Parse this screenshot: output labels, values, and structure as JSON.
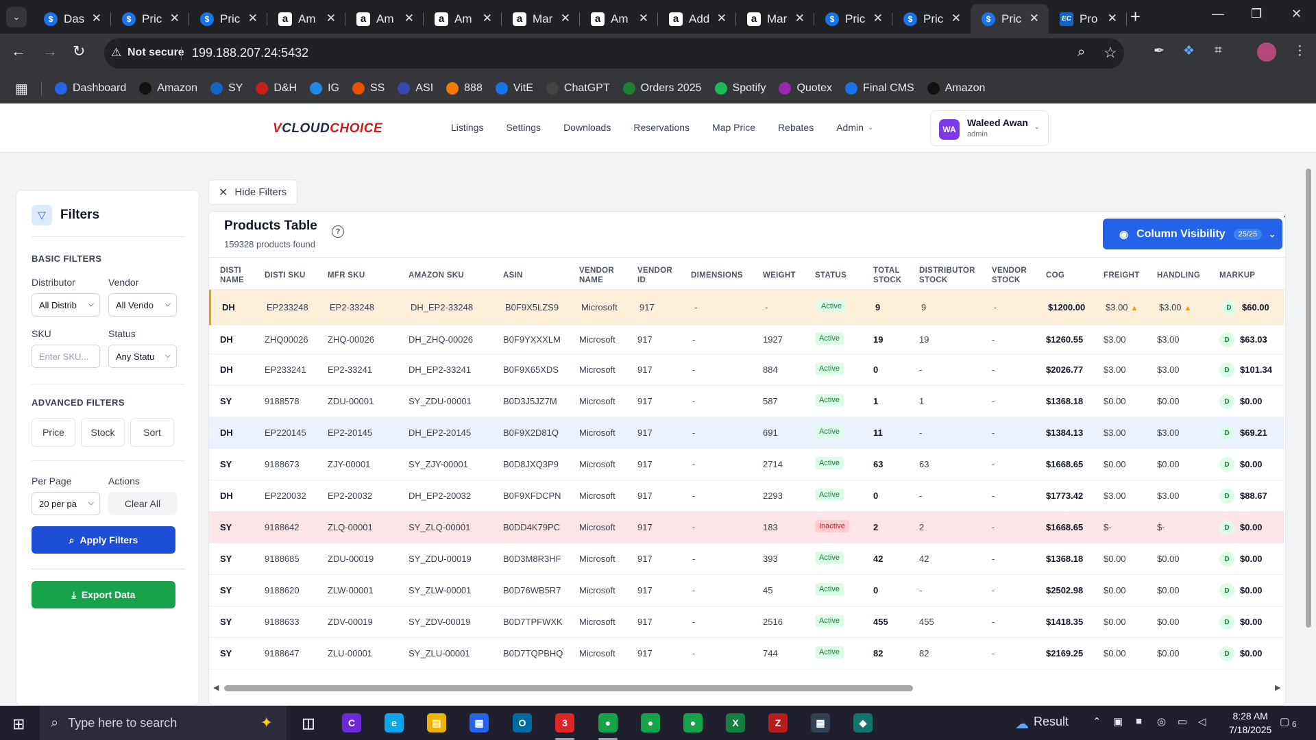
{
  "browser": {
    "tabs": [
      {
        "icon": "dollar-icon",
        "title": "Das",
        "kind": "dollar"
      },
      {
        "icon": "dollar-icon",
        "title": "Pric",
        "kind": "dollar"
      },
      {
        "icon": "dollar-icon",
        "title": "Pric",
        "kind": "dollar"
      },
      {
        "icon": "amazon-icon",
        "title": "Am",
        "kind": "amazon"
      },
      {
        "icon": "amazon-icon",
        "title": "Am",
        "kind": "amazon"
      },
      {
        "icon": "amazon-icon",
        "title": "Am",
        "kind": "amazon"
      },
      {
        "icon": "amazon-icon",
        "title": "Mar",
        "kind": "amazon"
      },
      {
        "icon": "amazon-icon",
        "title": "Am",
        "kind": "amazon"
      },
      {
        "icon": "amazon-icon",
        "title": "Add",
        "kind": "amazon"
      },
      {
        "icon": "amazon-icon",
        "title": "Mar",
        "kind": "amazon"
      },
      {
        "icon": "dollar-icon",
        "title": "Pric",
        "kind": "dollar"
      },
      {
        "icon": "dollar-icon",
        "title": "Pric",
        "kind": "dollar"
      },
      {
        "icon": "dollar-icon",
        "title": "Pric",
        "kind": "dollar",
        "active": true
      },
      {
        "icon": "ec-icon",
        "title": "Pro",
        "kind": "ec"
      }
    ],
    "security_label": "Not secure",
    "url": "199.188.207.24:5432",
    "bookmarks": [
      {
        "label": "Dashboard",
        "color": "#2563eb"
      },
      {
        "label": "Amazon",
        "color": "#111111"
      },
      {
        "label": "SY",
        "color": "#1565c0"
      },
      {
        "label": "D&H",
        "color": "#c81e1e"
      },
      {
        "label": "IG",
        "color": "#1e88e5"
      },
      {
        "label": "SS",
        "color": "#e65100"
      },
      {
        "label": "ASI",
        "color": "#3949ab"
      },
      {
        "label": "888",
        "color": "#f57c00"
      },
      {
        "label": "VitE",
        "color": "#1a73e8"
      },
      {
        "label": "ChatGPT",
        "color": "#444444"
      },
      {
        "label": "Orders 2025",
        "color": "#1e7e34"
      },
      {
        "label": "Spotify",
        "color": "#1db954"
      },
      {
        "label": "Quotex",
        "color": "#9c27b0"
      },
      {
        "label": "Final CMS",
        "color": "#1a73e8"
      },
      {
        "label": "Amazon",
        "color": "#111111"
      }
    ]
  },
  "app": {
    "logo_v": "V",
    "logo_cloud": "CLOUD",
    "logo_choice": "CHOICE",
    "nav": [
      "Listings",
      "Settings",
      "Downloads",
      "Reservations",
      "Map Price",
      "Rebates",
      "Admin"
    ],
    "user": {
      "initials": "WA",
      "name": "Waleed Awan",
      "role": "admin"
    }
  },
  "filters": {
    "title": "Filters",
    "basic_label": "BASIC FILTERS",
    "distributor_label": "Distributor",
    "distributor_value": "All Distrib",
    "vendor_label": "Vendor",
    "vendor_value": "All Vendo",
    "sku_label": "SKU",
    "sku_placeholder": "Enter SKU...",
    "status_label": "Status",
    "status_value": "Any Statu",
    "advanced_label": "ADVANCED FILTERS",
    "price_btn": "Price",
    "stock_btn": "Stock",
    "sort_btn": "Sort",
    "per_page_label": "Per Page",
    "per_page_value": "20 per pa",
    "actions_label": "Actions",
    "clear_all": "Clear All",
    "apply": "Apply Filters",
    "export": "Export Data"
  },
  "table": {
    "hide_filters": "Hide Filters",
    "title": "Products Table",
    "count": "159328 products found",
    "column_visibility": "Column Visibility",
    "column_visibility_count": "25/25",
    "headers": {
      "disti_name": [
        "DISTI",
        "NAME"
      ],
      "disti_sku": [
        "DISTI SKU"
      ],
      "mfr_sku": [
        "MFR SKU"
      ],
      "amazon_sku": [
        "AMAZON SKU"
      ],
      "asin": [
        "ASIN"
      ],
      "vendor_name": [
        "VENDOR",
        "NAME"
      ],
      "vendor_id": [
        "VENDOR",
        "ID"
      ],
      "dimensions": [
        "DIMENSIONS"
      ],
      "weight": [
        "WEIGHT"
      ],
      "status": [
        "STATUS"
      ],
      "total_stock": [
        "TOTAL",
        "STOCK"
      ],
      "distributor_stock": [
        "DISTRIBUTOR",
        "STOCK"
      ],
      "vendor_stock": [
        "VENDOR",
        "STOCK"
      ],
      "cog": [
        "COG"
      ],
      "freight": [
        "FREIGHT"
      ],
      "handling": [
        "HANDLING"
      ],
      "markup": [
        "MARKUP"
      ]
    },
    "rows": [
      {
        "disti": "DH",
        "disti_sku": "EP233248",
        "mfr_sku": "EP2-33248",
        "amazon_sku": "DH_EP2-33248",
        "asin": "B0F9X5LZS9",
        "vendor": "Microsoft",
        "vendor_id": "917",
        "dims": "-",
        "weight": "-",
        "status": "Active",
        "total": "9",
        "dist_stock": "9",
        "vendor_stock": "-",
        "cog": "$1200.00",
        "freight": "$3.00",
        "handling": "$3.00",
        "markup_badge": "D",
        "markup": "$60.00",
        "highlight": "orange",
        "warn": true
      },
      {
        "disti": "DH",
        "disti_sku": "ZHQ00026",
        "mfr_sku": "ZHQ-00026",
        "amazon_sku": "DH_ZHQ-00026",
        "asin": "B0F9YXXXLM",
        "vendor": "Microsoft",
        "vendor_id": "917",
        "dims": "-",
        "weight": "1927",
        "status": "Active",
        "total": "19",
        "dist_stock": "19",
        "vendor_stock": "-",
        "cog": "$1260.55",
        "freight": "$3.00",
        "handling": "$3.00",
        "markup_badge": "D",
        "markup": "$63.03"
      },
      {
        "disti": "DH",
        "disti_sku": "EP233241",
        "mfr_sku": "EP2-33241",
        "amazon_sku": "DH_EP2-33241",
        "asin": "B0F9X65XDS",
        "vendor": "Microsoft",
        "vendor_id": "917",
        "dims": "-",
        "weight": "884",
        "status": "Active",
        "total": "0",
        "dist_stock": "-",
        "vendor_stock": "-",
        "cog": "$2026.77",
        "freight": "$3.00",
        "handling": "$3.00",
        "markup_badge": "D",
        "markup": "$101.34"
      },
      {
        "disti": "SY",
        "disti_sku": "9188578",
        "mfr_sku": "ZDU-00001",
        "amazon_sku": "SY_ZDU-00001",
        "asin": "B0D3J5JZ7M",
        "vendor": "Microsoft",
        "vendor_id": "917",
        "dims": "-",
        "weight": "587",
        "status": "Active",
        "total": "1",
        "dist_stock": "1",
        "vendor_stock": "-",
        "cog": "$1368.18",
        "freight": "$0.00",
        "handling": "$0.00",
        "markup_badge": "D",
        "markup": "$0.00"
      },
      {
        "disti": "DH",
        "disti_sku": "EP220145",
        "mfr_sku": "EP2-20145",
        "amazon_sku": "DH_EP2-20145",
        "asin": "B0F9X2D81Q",
        "vendor": "Microsoft",
        "vendor_id": "917",
        "dims": "-",
        "weight": "691",
        "status": "Active",
        "total": "11",
        "dist_stock": "-",
        "vendor_stock": "-",
        "cog": "$1384.13",
        "freight": "$3.00",
        "handling": "$3.00",
        "markup_badge": "D",
        "markup": "$69.21",
        "highlight": "blue",
        "total_link": true
      },
      {
        "disti": "SY",
        "disti_sku": "9188673",
        "mfr_sku": "ZJY-00001",
        "amazon_sku": "SY_ZJY-00001",
        "asin": "B0D8JXQ3P9",
        "vendor": "Microsoft",
        "vendor_id": "917",
        "dims": "-",
        "weight": "2714",
        "status": "Active",
        "total": "63",
        "dist_stock": "63",
        "vendor_stock": "-",
        "cog": "$1668.65",
        "freight": "$0.00",
        "handling": "$0.00",
        "markup_badge": "D",
        "markup": "$0.00"
      },
      {
        "disti": "DH",
        "disti_sku": "EP220032",
        "mfr_sku": "EP2-20032",
        "amazon_sku": "DH_EP2-20032",
        "asin": "B0F9XFDCPN",
        "vendor": "Microsoft",
        "vendor_id": "917",
        "dims": "-",
        "weight": "2293",
        "status": "Active",
        "total": "0",
        "dist_stock": "-",
        "vendor_stock": "-",
        "cog": "$1773.42",
        "freight": "$3.00",
        "handling": "$3.00",
        "markup_badge": "D",
        "markup": "$88.67"
      },
      {
        "disti": "SY",
        "disti_sku": "9188642",
        "mfr_sku": "ZLQ-00001",
        "amazon_sku": "SY_ZLQ-00001",
        "asin": "B0DD4K79PC",
        "vendor": "Microsoft",
        "vendor_id": "917",
        "dims": "-",
        "weight": "183",
        "status": "Inactive",
        "total": "2",
        "dist_stock": "2",
        "vendor_stock": "-",
        "cog": "$1668.65",
        "freight": "$-",
        "handling": "$-",
        "markup_badge": "D",
        "markup": "$0.00",
        "highlight": "red"
      },
      {
        "disti": "SY",
        "disti_sku": "9188685",
        "mfr_sku": "ZDU-00019",
        "amazon_sku": "SY_ZDU-00019",
        "asin": "B0D3M8R3HF",
        "vendor": "Microsoft",
        "vendor_id": "917",
        "dims": "-",
        "weight": "393",
        "status": "Active",
        "total": "42",
        "dist_stock": "42",
        "vendor_stock": "-",
        "cog": "$1368.18",
        "freight": "$0.00",
        "handling": "$0.00",
        "markup_badge": "D",
        "markup": "$0.00"
      },
      {
        "disti": "SY",
        "disti_sku": "9188620",
        "mfr_sku": "ZLW-00001",
        "amazon_sku": "SY_ZLW-00001",
        "asin": "B0D76WB5R7",
        "vendor": "Microsoft",
        "vendor_id": "917",
        "dims": "-",
        "weight": "45",
        "status": "Active",
        "total": "0",
        "dist_stock": "-",
        "vendor_stock": "-",
        "cog": "$2502.98",
        "freight": "$0.00",
        "handling": "$0.00",
        "markup_badge": "D",
        "markup": "$0.00"
      },
      {
        "disti": "SY",
        "disti_sku": "9188633",
        "mfr_sku": "ZDV-00019",
        "amazon_sku": "SY_ZDV-00019",
        "asin": "B0D7TPFWXK",
        "vendor": "Microsoft",
        "vendor_id": "917",
        "dims": "-",
        "weight": "2516",
        "status": "Active",
        "total": "455",
        "dist_stock": "455",
        "vendor_stock": "-",
        "cog": "$1418.35",
        "freight": "$0.00",
        "handling": "$0.00",
        "markup_badge": "D",
        "markup": "$0.00"
      },
      {
        "disti": "SY",
        "disti_sku": "9188647",
        "mfr_sku": "ZLU-00001",
        "amazon_sku": "SY_ZLU-00001",
        "asin": "B0D7TQPBHQ",
        "vendor": "Microsoft",
        "vendor_id": "917",
        "dims": "-",
        "weight": "744",
        "status": "Active",
        "total": "82",
        "dist_stock": "82",
        "vendor_stock": "-",
        "cog": "$2169.25",
        "freight": "$0.00",
        "handling": "$0.00",
        "markup_badge": "D",
        "markup": "$0.00"
      }
    ]
  },
  "taskbar": {
    "search_placeholder": "Type here to search",
    "weather": "Result",
    "time": "8:28 AM",
    "date": "7/18/2025",
    "notifications": "6"
  }
}
